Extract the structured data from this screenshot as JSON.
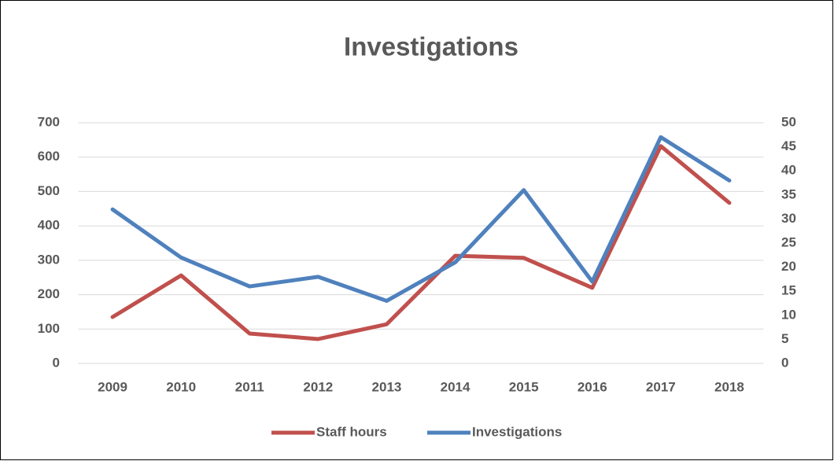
{
  "chart_data": {
    "type": "line",
    "title": "Investigations",
    "categories": [
      "2009",
      "2010",
      "2011",
      "2012",
      "2013",
      "2014",
      "2015",
      "2016",
      "2017",
      "2018"
    ],
    "series": [
      {
        "name": "Staff hours",
        "color": "#c0504d",
        "values": [
          135,
          256,
          87,
          71,
          114,
          313,
          307,
          220,
          632,
          467
        ]
      },
      {
        "name": "Investigations",
        "color": "#4f81bd",
        "axis": "y2",
        "values": [
          32,
          22,
          16,
          18,
          13,
          21,
          36,
          17,
          47,
          38
        ]
      }
    ],
    "ylim": [
      0,
      700
    ],
    "yticks": [
      0,
      100,
      200,
      300,
      400,
      500,
      600,
      700
    ],
    "y2lim": [
      0,
      50
    ],
    "y2ticks": [
      0,
      5,
      10,
      15,
      20,
      25,
      30,
      35,
      40,
      45,
      50
    ],
    "grid": true,
    "legend": "bottom"
  }
}
